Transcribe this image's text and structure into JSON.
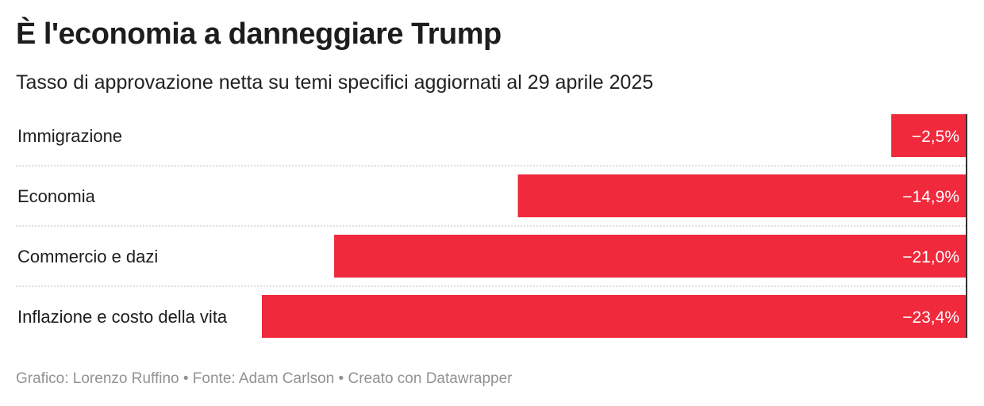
{
  "header": {
    "title": "È l'economia a danneggiare Trump",
    "subtitle": "Tasso di approvazione netta su temi specifici aggiornati al 29 aprile 2025"
  },
  "footer": {
    "text": "Grafico: Lorenzo Ruffino • Fonte: Adam Carlson • Creato con Datawrapper"
  },
  "colors": {
    "bar": "#f0293c",
    "label_text": "#ffffff",
    "divider": "#cccccc",
    "axis_line": "#333333"
  },
  "chart_data": {
    "type": "bar",
    "orientation": "horizontal",
    "title": "È l'economia a danneggiare Trump",
    "subtitle": "Tasso di approvazione netta su temi specifici aggiornati al 29 aprile 2025",
    "xlim": [
      -23.4,
      0
    ],
    "categories": [
      "Immigrazione",
      "Economia",
      "Commercio e dazi",
      "Inflazione e costo della vita"
    ],
    "values": [
      -2.5,
      -14.9,
      -21.0,
      -23.4
    ],
    "value_labels": [
      "−2,5%",
      "−14,9%",
      "−21,0%",
      "−23,4%"
    ]
  }
}
